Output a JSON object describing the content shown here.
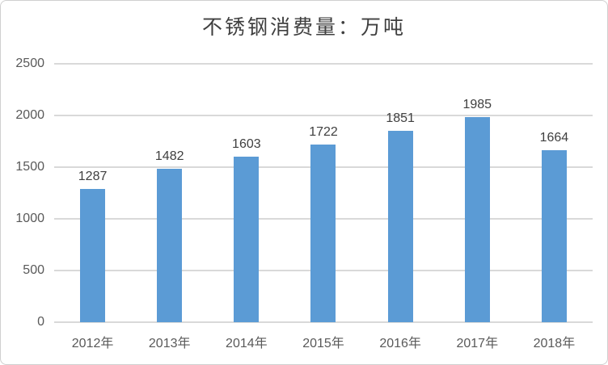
{
  "chart_data": {
    "type": "bar",
    "title": "不锈钢消费量：万吨",
    "categories": [
      "2012年",
      "2013年",
      "2014年",
      "2015年",
      "2016年",
      "2017年",
      "2018年"
    ],
    "values": [
      1287,
      1482,
      1603,
      1722,
      1851,
      1985,
      1664
    ],
    "data_labels": [
      1287,
      1482,
      1603,
      1722,
      1851,
      1985,
      1664
    ],
    "yticks": [
      0,
      500,
      1000,
      1500,
      2000,
      2500
    ],
    "ylim": [
      0,
      2500
    ],
    "xlabel": "",
    "ylabel": "",
    "grid": true,
    "legend_position": "none",
    "bar_color": "#5b9bd5",
    "gridline_color": "#d9d9d9",
    "axis_label_color": "#595959",
    "data_label_color": "#3f3f3f",
    "title_color": "#3f3f3f",
    "frame_border_color": "#cfcfcf",
    "background_color": "#ffffff"
  }
}
